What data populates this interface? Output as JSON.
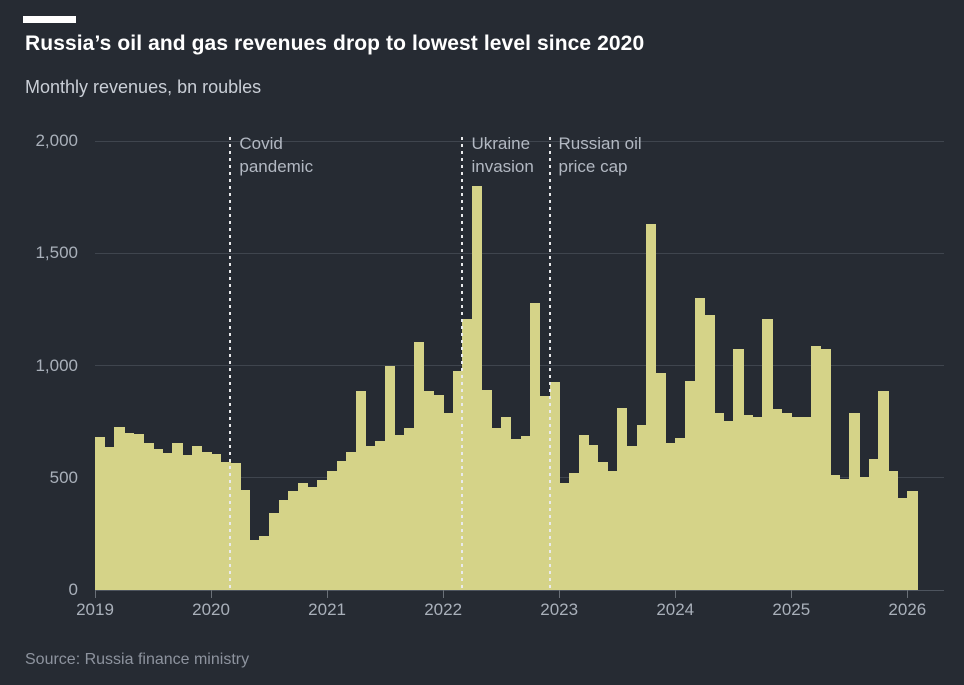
{
  "header": {
    "title": "Russia’s oil and gas revenues drop to lowest level since 2020",
    "subtitle": "Monthly revenues, bn roubles"
  },
  "source_note": "Source: Russia finance ministry",
  "colors": {
    "background": "#262b33",
    "bar": "#d5d388",
    "title_text": "#ffffff",
    "subtitle_text": "#c9ced6",
    "axis_text": "#a9b0ba",
    "gridline": "#3f454e",
    "baseline": "#4d545e",
    "tick": "#6a7078",
    "annotation_line": "#e9eaec",
    "annotation_text": "#b2b8c2",
    "source_text": "#8d939e",
    "top_dash": "#ffffff"
  },
  "chart_data": {
    "type": "bar",
    "title": "Russia’s oil and gas revenues drop to lowest level since 2020",
    "subtitle": "Monthly revenues, bn roubles",
    "ylabel": "bn roubles",
    "xlabel": "",
    "ylim": [
      0,
      2000
    ],
    "grid": "horizontal",
    "start_month": "2019-01",
    "end_month": "2026-01",
    "y_ticks": [
      {
        "label": "0",
        "value": 0
      },
      {
        "label": "500",
        "value": 500
      },
      {
        "label": "1,000",
        "value": 1000
      },
      {
        "label": "1,500",
        "value": 1500
      },
      {
        "label": "2,000",
        "value": 2000
      }
    ],
    "x_ticks": [
      {
        "label": "2019",
        "month_index": 0
      },
      {
        "label": "2020",
        "month_index": 12
      },
      {
        "label": "2021",
        "month_index": 24
      },
      {
        "label": "2022",
        "month_index": 36
      },
      {
        "label": "2023",
        "month_index": 48
      },
      {
        "label": "2024",
        "month_index": 60
      },
      {
        "label": "2025",
        "month_index": 72
      },
      {
        "label": "2026",
        "month_index": 84
      }
    ],
    "annotations": [
      {
        "text": "Covid\npandemic",
        "month_index": 14
      },
      {
        "text": "Ukraine\ninvasion",
        "month_index": 38
      },
      {
        "text": "Russian oil\nprice cap",
        "month_index": 47
      }
    ],
    "values": [
      680,
      635,
      725,
      700,
      695,
      655,
      630,
      610,
      655,
      600,
      640,
      615,
      605,
      570,
      565,
      445,
      225,
      240,
      345,
      400,
      440,
      475,
      460,
      490,
      530,
      575,
      615,
      885,
      640,
      665,
      1000,
      690,
      720,
      1105,
      885,
      870,
      790,
      975,
      1205,
      1800,
      890,
      720,
      770,
      672,
      688,
      1280,
      866,
      925,
      475,
      520,
      690,
      645,
      570,
      530,
      810,
      640,
      735,
      1630,
      965,
      655,
      675,
      930,
      1300,
      1225,
      790,
      755,
      1075,
      780,
      770,
      1205,
      805,
      790,
      770,
      771,
      1085,
      1075,
      513,
      495,
      787,
      505,
      583,
      888,
      530,
      412,
      440
    ]
  }
}
